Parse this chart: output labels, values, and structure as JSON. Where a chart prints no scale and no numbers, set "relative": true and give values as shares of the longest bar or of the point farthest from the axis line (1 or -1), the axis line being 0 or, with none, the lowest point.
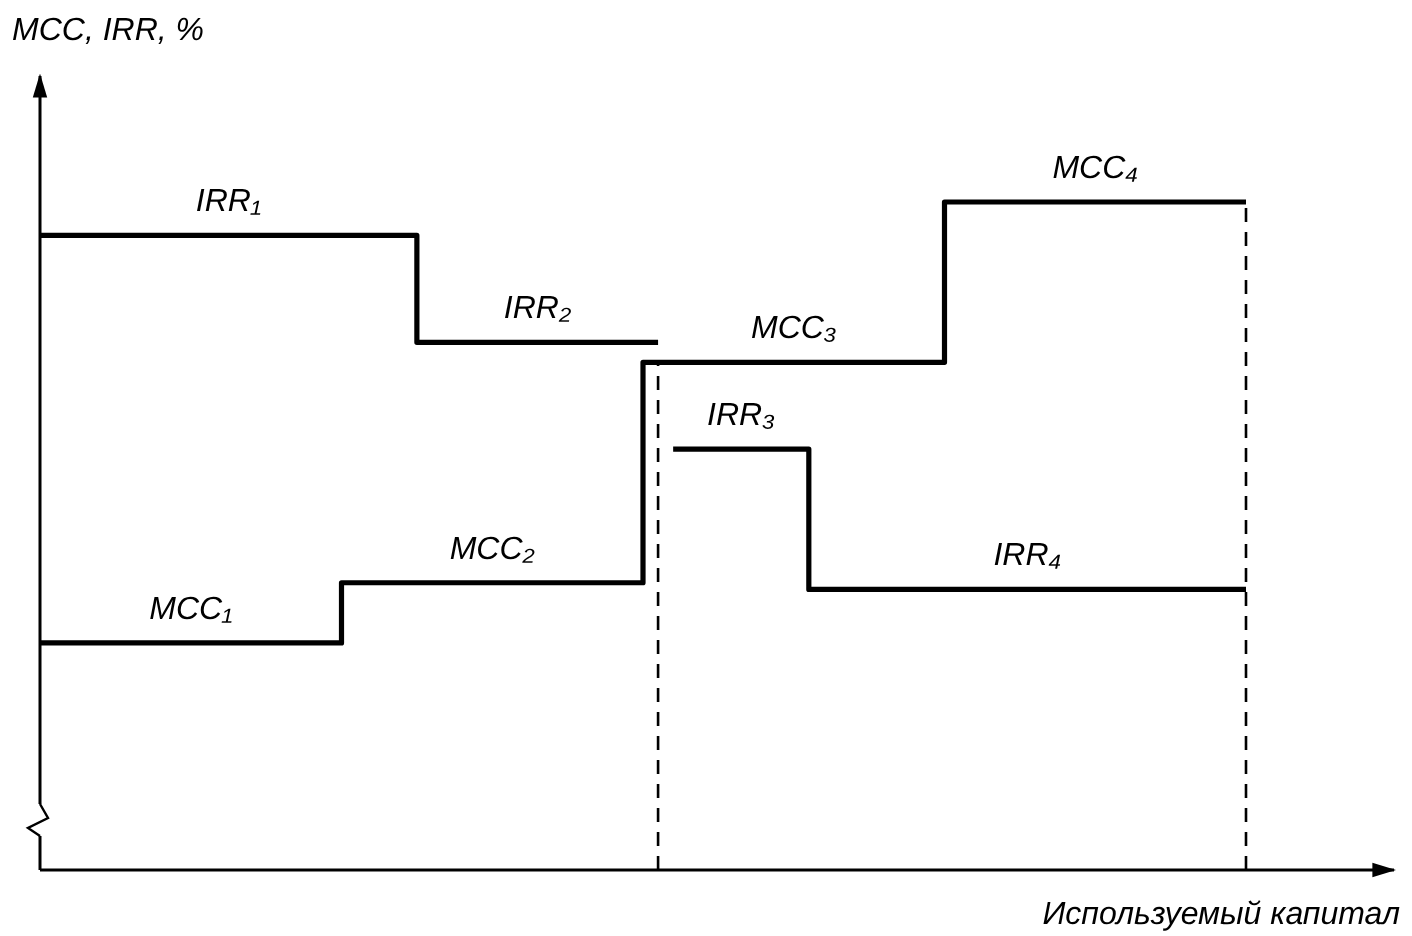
{
  "chart_data": {
    "type": "step",
    "relative": true,
    "ylabel": "MCC, IRR, %",
    "xlabel": "Используемый капитал",
    "categories": [
      null,
      null,
      null,
      null,
      null,
      null,
      null,
      null,
      null,
      null,
      null,
      null,
      null,
      null,
      null,
      null,
      null,
      null,
      null,
      null,
      null,
      null,
      null,
      null,
      null,
      null,
      null,
      null,
      null,
      null,
      null,
      null,
      null,
      null,
      null,
      null,
      null,
      null,
      null,
      null,
      null,
      null,
      null,
      null,
      null,
      null,
      null,
      null,
      null,
      null,
      null,
      null,
      null,
      null,
      null,
      null,
      null,
      null,
      null,
      null,
      null,
      null,
      null,
      null,
      null,
      null,
      null,
      null,
      null,
      null,
      null,
      null,
      null,
      null,
      null,
      null,
      null,
      null,
      null,
      null,
      null
    ],
    "series": [
      {
        "color": "#000000",
        "values": [
          0.95,
          0.95,
          0.95,
          0.95,
          0.95,
          0.95,
          0.95,
          0.95,
          0.95,
          0.95,
          0.95,
          0.95,
          0.95,
          0.95,
          0.95,
          0.95,
          0.95,
          0.95,
          0.95,
          0.95,
          0.95,
          0.95,
          0.95,
          0.95,
          0.95,
          0.79,
          0.79,
          0.79,
          0.79,
          0.79,
          0.79,
          0.79,
          0.79,
          0.79,
          0.79,
          0.79,
          0.79,
          0.79,
          0.79,
          0.79,
          0.79,
          null,
          0.63,
          0.63,
          0.63,
          0.63,
          0.63,
          0.63,
          0.63,
          0.63,
          0.63,
          0.42,
          0.42,
          0.42,
          0.42,
          0.42,
          0.42,
          0.42,
          0.42,
          0.42,
          0.42,
          0.42,
          0.42,
          0.42,
          0.42,
          0.42,
          0.42,
          0.42,
          0.42,
          0.42,
          0.42,
          0.42,
          0.42,
          0.42,
          0.42,
          0.42,
          0.42,
          0.42,
          0.42,
          0.42,
          0.42
        ]
      },
      {
        "color": "#000000",
        "values": [
          0.34,
          0.34,
          0.34,
          0.34,
          0.34,
          0.34,
          0.34,
          0.34,
          0.34,
          0.34,
          0.34,
          0.34,
          0.34,
          0.34,
          0.34,
          0.34,
          0.34,
          0.34,
          0.34,
          0.34,
          0.43,
          0.43,
          0.43,
          0.43,
          0.43,
          0.43,
          0.43,
          0.43,
          0.43,
          0.43,
          0.43,
          0.43,
          0.43,
          0.43,
          0.43,
          0.43,
          0.43,
          0.43,
          0.43,
          0.43,
          0.76,
          0.76,
          0.76,
          0.76,
          0.76,
          0.76,
          0.76,
          0.76,
          0.76,
          0.76,
          0.76,
          0.76,
          0.76,
          0.76,
          0.76,
          0.76,
          0.76,
          0.76,
          0.76,
          0.76,
          1,
          1,
          1,
          1,
          1,
          1,
          1,
          1,
          1,
          1,
          1,
          1,
          1,
          1,
          1,
          1,
          1,
          1,
          1,
          1,
          1
        ]
      }
    ],
    "annotations": [
      "IRR₁",
      "IRR₂",
      "IRR₃",
      "IRR₄",
      "MCC₁",
      "MCC₂",
      "MCC₃",
      "MCC₄"
    ]
  }
}
